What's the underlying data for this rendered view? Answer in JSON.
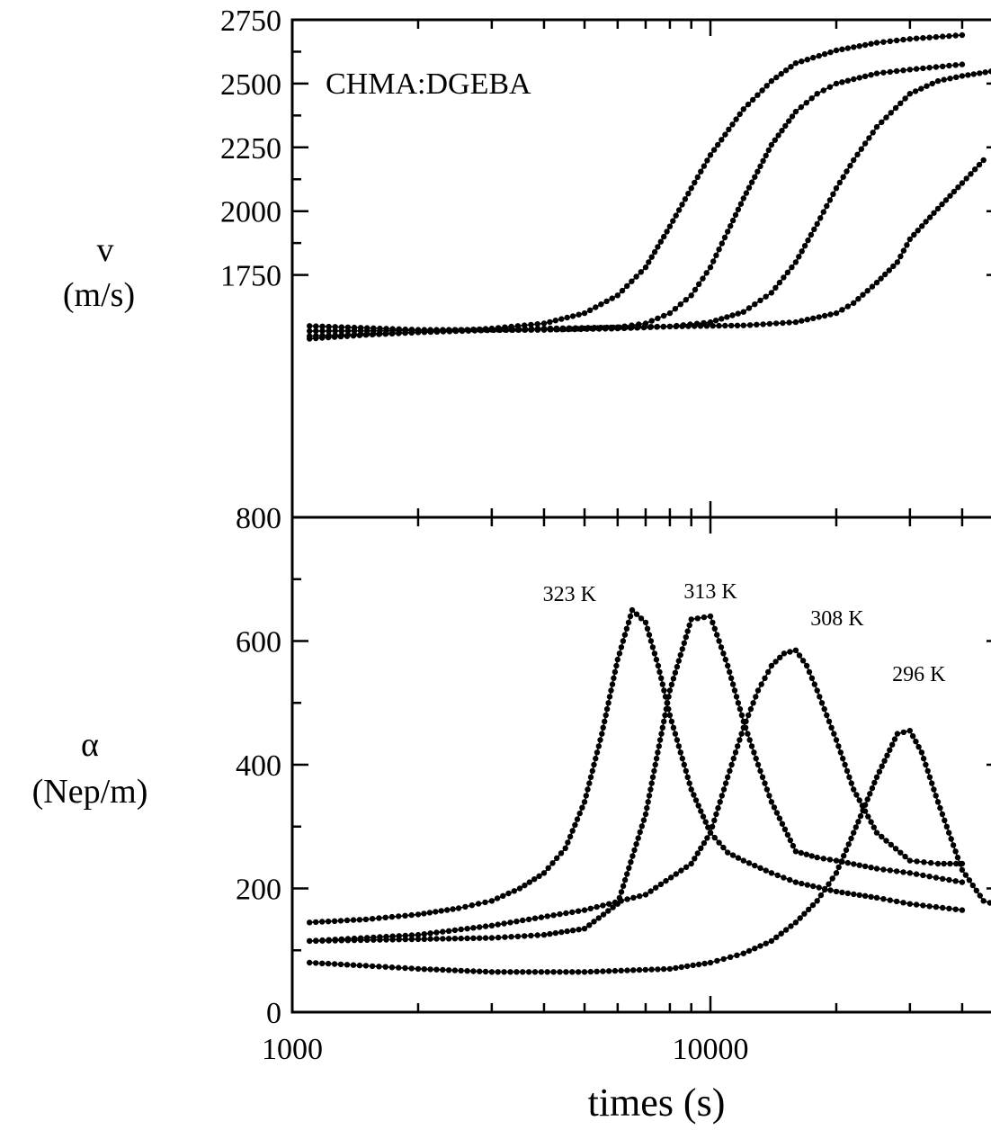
{
  "chart_data": [
    {
      "type": "scatter",
      "panel": "top",
      "annotation": "CHMA:DGEBA",
      "ylabel": [
        "v",
        "(m/s)"
      ],
      "ylim": [
        800,
        2750
      ],
      "yticks": [
        {
          "value": 2750,
          "label": "2750"
        },
        {
          "value": 2500,
          "label": "2500"
        },
        {
          "value": 2250,
          "label": "2250"
        },
        {
          "value": 2000,
          "label": "2000"
        },
        {
          "value": 1750,
          "label": "1750"
        },
        {
          "value": 800,
          "label": "800"
        }
      ],
      "xscale": "log",
      "xlim": [
        1000,
        50000
      ],
      "series": [
        {
          "name": "323 K",
          "x": [
            1100,
            1500,
            2000,
            3000,
            4000,
            5000,
            6000,
            7000,
            8000,
            9000,
            10000,
            12000,
            14000,
            16000,
            20000,
            25000,
            30000,
            40000
          ],
          "y": [
            1500,
            1515,
            1525,
            1540,
            1560,
            1600,
            1670,
            1780,
            1940,
            2090,
            2220,
            2400,
            2510,
            2580,
            2630,
            2660,
            2675,
            2690
          ]
        },
        {
          "name": "313 K",
          "x": [
            1100,
            2000,
            3000,
            4000,
            5000,
            6000,
            7000,
            8000,
            9000,
            10000,
            11000,
            12000,
            14000,
            16000,
            18000,
            20000,
            25000,
            30000,
            40000
          ],
          "y": [
            1550,
            1535,
            1535,
            1535,
            1540,
            1545,
            1560,
            1600,
            1670,
            1780,
            1920,
            2050,
            2260,
            2390,
            2460,
            2500,
            2540,
            2555,
            2575
          ]
        },
        {
          "name": "308 K",
          "x": [
            1100,
            2000,
            4000,
            6000,
            8000,
            10000,
            12000,
            14000,
            16000,
            18000,
            20000,
            22000,
            25000,
            30000,
            35000,
            40000,
            50000
          ],
          "y": [
            1530,
            1532,
            1535,
            1540,
            1548,
            1565,
            1605,
            1680,
            1800,
            1950,
            2090,
            2200,
            2330,
            2460,
            2510,
            2530,
            2555
          ]
        },
        {
          "name": "296 K",
          "x": [
            1100,
            2000,
            4000,
            8000,
            12000,
            16000,
            20000,
            22000,
            25000,
            28000,
            30000,
            35000,
            40000,
            45000
          ],
          "y": [
            1510,
            1525,
            1540,
            1548,
            1552,
            1565,
            1600,
            1640,
            1720,
            1800,
            1890,
            2010,
            2110,
            2200
          ]
        }
      ]
    },
    {
      "type": "scatter",
      "panel": "bottom",
      "ylabel": [
        "α",
        "(Nep/m)"
      ],
      "xlabel": "times (s)",
      "ylim": [
        0,
        800
      ],
      "yticks": [
        {
          "value": 0,
          "label": "0"
        },
        {
          "value": 200,
          "label": "200"
        },
        {
          "value": 400,
          "label": "400"
        },
        {
          "value": 600,
          "label": "600"
        }
      ],
      "xscale": "log",
      "xlim": [
        1000,
        50000
      ],
      "xticks": [
        {
          "value": 1000,
          "label": "1000"
        },
        {
          "value": 10000,
          "label": "10000"
        }
      ],
      "series": [
        {
          "name": "323 K",
          "x": [
            1100,
            1500,
            2000,
            2500,
            3000,
            3500,
            4000,
            4500,
            5000,
            5500,
            6000,
            6500,
            7000,
            7500,
            8000,
            9000,
            10000,
            11000,
            12000,
            14000,
            16000,
            20000,
            25000,
            30000,
            40000
          ],
          "y": [
            145,
            150,
            158,
            168,
            180,
            200,
            225,
            265,
            340,
            450,
            570,
            650,
            630,
            560,
            480,
            360,
            290,
            258,
            245,
            225,
            210,
            195,
            185,
            175,
            165
          ]
        },
        {
          "name": "313 K",
          "x": [
            1100,
            2000,
            3000,
            4000,
            5000,
            6000,
            7000,
            8000,
            9000,
            10000,
            11000,
            12000,
            13000,
            14000,
            16000,
            18000,
            20000,
            25000,
            30000,
            40000
          ],
          "y": [
            115,
            118,
            120,
            125,
            135,
            175,
            320,
            520,
            635,
            640,
            560,
            470,
            400,
            340,
            260,
            250,
            245,
            232,
            225,
            210
          ]
        },
        {
          "name": "308 K",
          "x": [
            1100,
            2000,
            3000,
            5000,
            7000,
            9000,
            10000,
            11000,
            12000,
            13000,
            14000,
            15000,
            16000,
            17000,
            18000,
            20000,
            22000,
            25000,
            30000,
            35000,
            40000
          ],
          "y": [
            115,
            125,
            140,
            165,
            190,
            240,
            290,
            380,
            460,
            520,
            560,
            580,
            585,
            560,
            520,
            440,
            360,
            290,
            245,
            240,
            240
          ]
        },
        {
          "name": "296 K",
          "x": [
            1100,
            1500,
            2000,
            3000,
            5000,
            8000,
            10000,
            12000,
            14000,
            16000,
            18000,
            20000,
            22000,
            25000,
            28000,
            30000,
            32000,
            35000,
            40000,
            45000,
            50000
          ],
          "y": [
            80,
            75,
            70,
            65,
            65,
            70,
            80,
            95,
            115,
            145,
            180,
            225,
            290,
            380,
            450,
            455,
            420,
            340,
            230,
            180,
            170
          ]
        }
      ]
    }
  ]
}
